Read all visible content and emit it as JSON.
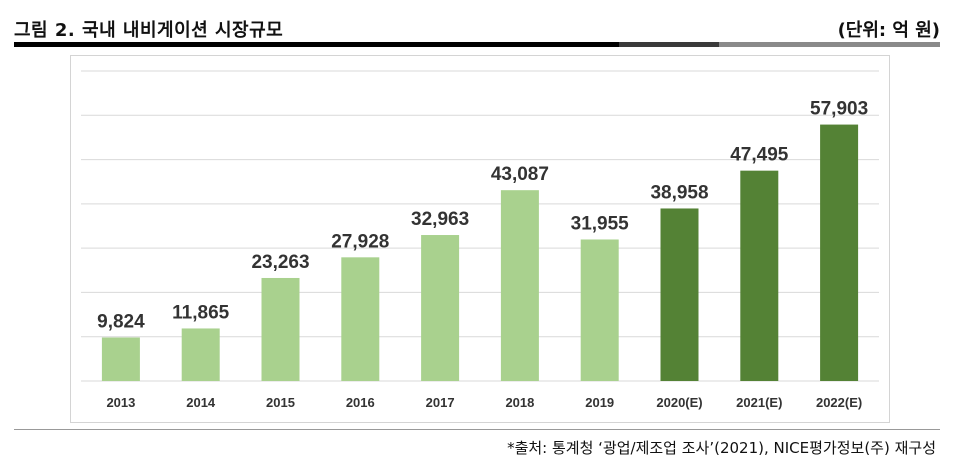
{
  "header": {
    "title": "그림 2. 국내 내비게이션 시장규모",
    "unit": "(단위: 억 원)"
  },
  "footer": {
    "source": "*출처: 통계청 ‘광업/제조업 조사’(2021), NICE평가정보(주) 재구성"
  },
  "colors": {
    "actual": "#a9d18e",
    "estimate": "#548235",
    "grid": "#d9d9d9"
  },
  "chart_data": {
    "type": "bar",
    "title": "",
    "xlabel": "",
    "ylabel": "",
    "categories": [
      "2013",
      "2014",
      "2015",
      "2016",
      "2017",
      "2018",
      "2019",
      "2020(E)",
      "2021(E)",
      "2022(E)"
    ],
    "values": [
      9824,
      11865,
      23263,
      27928,
      32963,
      43087,
      31955,
      38958,
      47495,
      57903
    ],
    "value_labels": [
      "9,824",
      "11,865",
      "23,263",
      "27,928",
      "32,963",
      "43,087",
      "31,955",
      "38,958",
      "47,495",
      "57,903"
    ],
    "estimated": [
      false,
      false,
      false,
      false,
      false,
      false,
      false,
      true,
      true,
      true
    ],
    "ylim": [
      0,
      70000
    ],
    "grid": true,
    "legend": "none"
  }
}
